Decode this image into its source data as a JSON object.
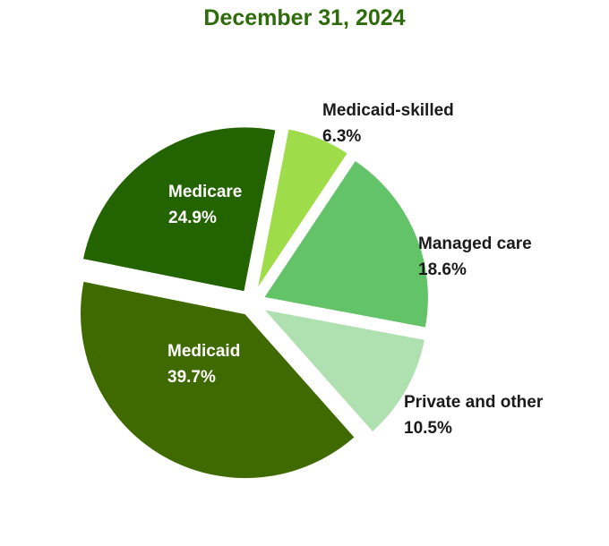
{
  "chart_data": {
    "type": "pie",
    "title": "December 31, 2024",
    "start_angle_deg": 11,
    "direction": "clockwise",
    "slices": [
      {
        "label": "Medicaid-skilled",
        "value": 6.3,
        "display": "6.3%",
        "color": "#9fdc4a",
        "label_color": "#1a1a1a",
        "label_position": "outside"
      },
      {
        "label": "Managed care",
        "value": 18.6,
        "display": "18.6%",
        "color": "#62c368",
        "label_color": "#1a1a1a",
        "label_position": "outside"
      },
      {
        "label": "Private and other",
        "value": 10.5,
        "display": "10.5%",
        "color": "#aee0b0",
        "label_color": "#1a1a1a",
        "label_position": "outside"
      },
      {
        "label": "Medicaid",
        "value": 39.7,
        "display": "39.7%",
        "color": "#3f6a00",
        "label_color": "#ffffff",
        "label_position": "inside"
      },
      {
        "label": "Medicare",
        "value": 24.9,
        "display": "24.9%",
        "color": "#236300",
        "label_color": "#ffffff",
        "label_position": "inside"
      }
    ]
  }
}
